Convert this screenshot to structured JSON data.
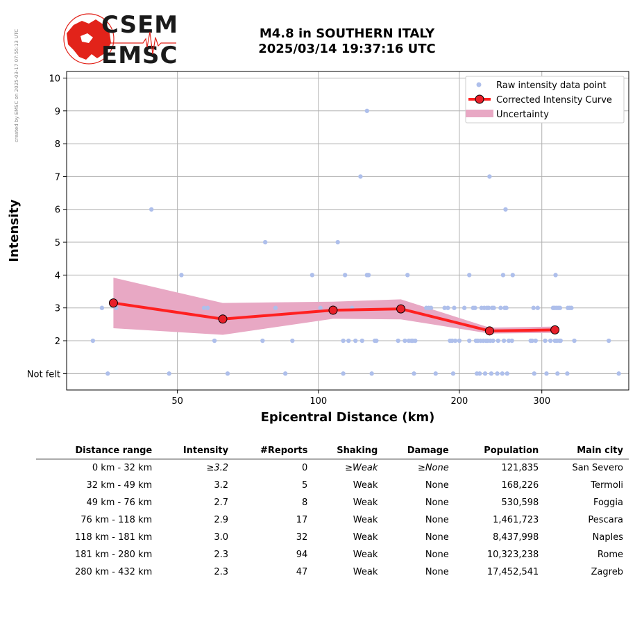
{
  "credit": "created by EMSC on 2025-03-17 07:55:13 UTC",
  "logo": {
    "line1": "CSEM",
    "line2": "EMSC"
  },
  "title": {
    "line1": "M4.8 in SOUTHERN ITALY",
    "line2": "2025/03/14 19:37:16 UTC"
  },
  "colors": {
    "raw": "#aebfeb",
    "curve": "#ff2020",
    "marker": "#e8202a",
    "band": "#e8a8c4",
    "logo_red": "#e2231a"
  },
  "chart_data": {
    "type": "scatter",
    "xlabel": "Epicentral Distance (km)",
    "ylabel": "Intensity",
    "xscale": "log",
    "xlim": [
      29,
      460
    ],
    "ylim": [
      0.5,
      10.2
    ],
    "xticks": [
      50,
      100,
      200,
      300
    ],
    "xtick_labels": [
      "50",
      "100",
      "200",
      "300"
    ],
    "yticks": [
      1,
      2,
      3,
      4,
      5,
      6,
      7,
      8,
      9,
      10
    ],
    "ytick_labels": [
      "Not felt",
      "2",
      "3",
      "4",
      "5",
      "6",
      "7",
      "8",
      "9",
      "10"
    ],
    "grid": true,
    "legend_position": "top-right",
    "legend": [
      "Raw intensity data point",
      "Corrected Intensity Curve",
      "Uncertainty"
    ],
    "raw_points": [
      [
        33,
        2
      ],
      [
        34.5,
        3
      ],
      [
        35.5,
        1
      ],
      [
        37,
        3
      ],
      [
        44,
        6
      ],
      [
        48,
        1
      ],
      [
        51,
        4
      ],
      [
        57,
        3
      ],
      [
        58,
        3
      ],
      [
        60,
        2
      ],
      [
        64,
        1
      ],
      [
        76,
        2
      ],
      [
        77,
        5
      ],
      [
        81,
        3
      ],
      [
        85,
        1
      ],
      [
        88,
        2
      ],
      [
        97,
        4
      ],
      [
        101,
        3
      ],
      [
        110,
        5
      ],
      [
        113,
        1
      ],
      [
        113,
        2
      ],
      [
        114,
        4
      ],
      [
        116,
        2
      ],
      [
        118,
        3
      ],
      [
        120,
        2
      ],
      [
        123,
        7
      ],
      [
        124,
        2
      ],
      [
        127,
        9
      ],
      [
        127,
        4
      ],
      [
        128,
        4
      ],
      [
        130,
        1
      ],
      [
        132,
        2
      ],
      [
        133,
        2
      ],
      [
        148,
        2
      ],
      [
        153,
        2
      ],
      [
        155,
        4
      ],
      [
        156,
        2
      ],
      [
        158,
        2
      ],
      [
        159,
        2
      ],
      [
        160,
        1
      ],
      [
        161,
        2
      ],
      [
        170,
        3
      ],
      [
        172,
        3
      ],
      [
        174,
        3
      ],
      [
        178,
        1
      ],
      [
        186,
        3
      ],
      [
        189,
        3
      ],
      [
        191,
        2
      ],
      [
        193,
        2
      ],
      [
        194,
        1
      ],
      [
        195,
        3
      ],
      [
        196,
        2
      ],
      [
        200,
        2
      ],
      [
        205,
        3
      ],
      [
        210,
        2
      ],
      [
        210,
        4
      ],
      [
        214,
        3
      ],
      [
        216,
        3
      ],
      [
        217,
        2
      ],
      [
        218,
        1
      ],
      [
        219,
        2
      ],
      [
        221,
        1
      ],
      [
        222,
        2
      ],
      [
        223,
        3
      ],
      [
        225,
        2
      ],
      [
        226,
        3
      ],
      [
        227,
        1
      ],
      [
        228,
        2
      ],
      [
        229,
        3
      ],
      [
        230,
        2
      ],
      [
        231,
        3
      ],
      [
        232,
        7
      ],
      [
        233,
        2
      ],
      [
        234,
        1
      ],
      [
        235,
        3
      ],
      [
        236,
        2
      ],
      [
        237,
        3
      ],
      [
        241,
        1
      ],
      [
        242,
        2
      ],
      [
        245,
        3
      ],
      [
        247,
        1
      ],
      [
        248,
        4
      ],
      [
        249,
        2
      ],
      [
        250,
        3
      ],
      [
        251,
        6
      ],
      [
        252,
        3
      ],
      [
        253,
        1
      ],
      [
        255,
        2
      ],
      [
        259,
        2
      ],
      [
        260,
        4
      ],
      [
        284,
        2
      ],
      [
        286,
        2
      ],
      [
        288,
        3
      ],
      [
        289,
        1
      ],
      [
        291,
        2
      ],
      [
        294,
        3
      ],
      [
        305,
        2
      ],
      [
        307,
        1
      ],
      [
        313,
        2
      ],
      [
        317,
        3
      ],
      [
        319,
        3
      ],
      [
        320,
        2
      ],
      [
        321,
        4
      ],
      [
        322,
        3
      ],
      [
        323,
        2
      ],
      [
        324,
        1
      ],
      [
        325,
        3
      ],
      [
        327,
        2
      ],
      [
        328,
        3
      ],
      [
        329,
        2
      ],
      [
        340,
        1
      ],
      [
        341,
        3
      ],
      [
        344,
        3
      ],
      [
        347,
        3
      ],
      [
        352,
        2
      ],
      [
        417,
        2
      ],
      [
        438,
        1
      ]
    ],
    "series": [
      {
        "name": "Corrected Intensity Curve",
        "x": [
          36.5,
          62.5,
          107.5,
          150,
          232,
          320
        ],
        "y": [
          3.15,
          2.66,
          2.93,
          2.97,
          2.3,
          2.33
        ]
      },
      {
        "name": "Uncertainty",
        "x": [
          36.5,
          62.5,
          107.5,
          150,
          232,
          320
        ],
        "lower": [
          2.38,
          2.18,
          2.67,
          2.65,
          2.22,
          2.24
        ],
        "upper": [
          3.92,
          3.15,
          3.19,
          3.26,
          2.4,
          2.43
        ]
      }
    ]
  },
  "table": {
    "headers": [
      "Distance range",
      "Intensity",
      "#Reports",
      "Shaking",
      "Damage",
      "Population",
      "Main city"
    ],
    "rows": [
      [
        "0 km -   32 km",
        "≥3.2",
        "0",
        "≥Weak",
        "≥None",
        "121,835",
        "San Severo"
      ],
      [
        "32 km -   49 km",
        "3.2",
        "5",
        "Weak",
        "None",
        "168,226",
        "Termoli"
      ],
      [
        "49 km -   76 km",
        "2.7",
        "8",
        "Weak",
        "None",
        "530,598",
        "Foggia"
      ],
      [
        "76 km -  118 km",
        "2.9",
        "17",
        "Weak",
        "None",
        "1,461,723",
        "Pescara"
      ],
      [
        "118 km -  181 km",
        "3.0",
        "32",
        "Weak",
        "None",
        "8,437,998",
        "Naples"
      ],
      [
        "181 km -  280 km",
        "2.3",
        "94",
        "Weak",
        "None",
        "10,323,238",
        "Rome"
      ],
      [
        "280 km -  432 km",
        "2.3",
        "47",
        "Weak",
        "None",
        "17,452,541",
        "Zagreb"
      ]
    ]
  }
}
